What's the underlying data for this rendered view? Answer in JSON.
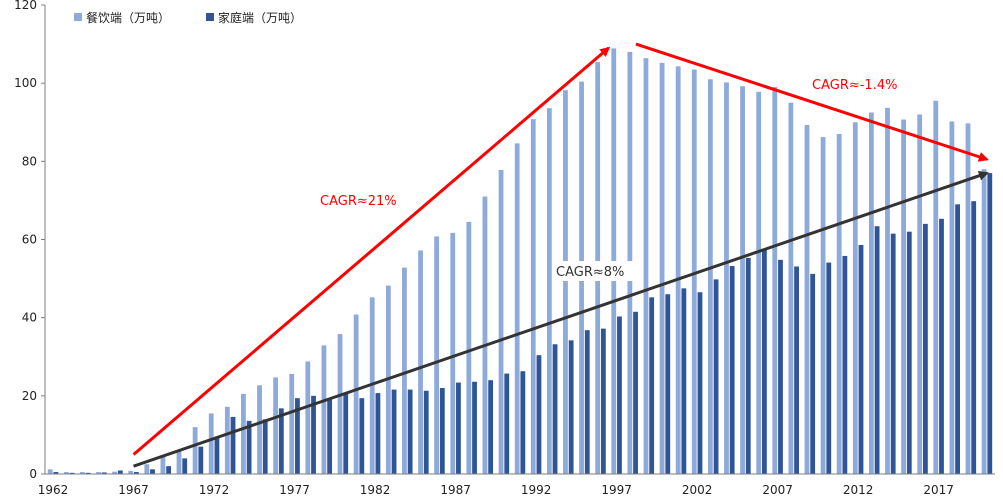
{
  "chart_data": {
    "type": "bar",
    "title": "",
    "xlabel": "",
    "ylabel": "",
    "ylim": [
      0,
      120
    ],
    "yticks": [
      0,
      20,
      40,
      60,
      80,
      100,
      120
    ],
    "grid": false,
    "legend_position": "top-left",
    "x_tick_labels": [
      "1962",
      "1967",
      "1972",
      "1977",
      "1982",
      "1987",
      "1992",
      "1997",
      "2002",
      "2007",
      "2012",
      "2017"
    ],
    "categories": [
      1962,
      1963,
      1964,
      1965,
      1966,
      1967,
      1968,
      1969,
      1970,
      1971,
      1972,
      1973,
      1974,
      1975,
      1976,
      1977,
      1978,
      1979,
      1980,
      1981,
      1982,
      1983,
      1984,
      1985,
      1986,
      1987,
      1988,
      1989,
      1990,
      1991,
      1992,
      1993,
      1994,
      1995,
      1996,
      1997,
      1998,
      1999,
      2000,
      2001,
      2002,
      2003,
      2004,
      2005,
      2006,
      2007,
      2008,
      2009,
      2010,
      2011,
      2012,
      2013,
      2014,
      2015,
      2016,
      2017,
      2018,
      2019,
      2020
    ],
    "series": [
      {
        "name": "餐饮端（万吨）",
        "color": "#8eaadb",
        "values": [
          1.2,
          0.5,
          0.5,
          0.5,
          0.6,
          0.8,
          2.5,
          4.5,
          6.0,
          12.0,
          15.5,
          17.2,
          20.5,
          22.7,
          24.7,
          25.6,
          28.8,
          32.9,
          35.8,
          40.8,
          45.2,
          48.2,
          52.8,
          57.2,
          60.8,
          61.7,
          64.5,
          71.0,
          77.8,
          84.6,
          90.8,
          93.6,
          98.2,
          100.4,
          105.4,
          108.9,
          108.0,
          106.4,
          105.2,
          104.3,
          103.5,
          101.0,
          100.2,
          99.2,
          97.8,
          99.0,
          95.0,
          89.3,
          86.2,
          87.0,
          90.0,
          92.5,
          93.7,
          90.7,
          92.0,
          95.5,
          90.2,
          89.7,
          78.0
        ]
      },
      {
        "name": "家庭端（万吨）",
        "color": "#2f5597",
        "values": [
          0.5,
          0.3,
          0.3,
          0.4,
          0.9,
          0.5,
          1.2,
          2.0,
          4.0,
          7.0,
          9.2,
          14.6,
          13.6,
          14.0,
          16.8,
          19.4,
          20.0,
          19.3,
          20.7,
          19.4,
          20.7,
          21.6,
          21.6,
          21.3,
          22.0,
          23.4,
          23.6,
          24.0,
          25.7,
          26.3,
          30.4,
          33.2,
          34.2,
          36.8,
          37.2,
          40.3,
          41.5,
          45.2,
          46.0,
          47.5,
          46.5,
          49.8,
          53.2,
          55.3,
          57.5,
          54.8,
          53.1,
          51.2,
          54.1,
          55.8,
          58.6,
          63.4,
          61.5,
          62.0,
          64.0,
          65.3,
          69.0,
          69.8,
          77.0
        ]
      }
    ],
    "annotations": [
      {
        "text": "CAGR≈21%",
        "color": "#ff0000",
        "line_from": [
          1967,
          5
        ],
        "line_to": [
          1996.5,
          109
        ]
      },
      {
        "text": "CAGR≈-1.4%",
        "color": "#ff0000",
        "line_from": [
          1998.2,
          110
        ],
        "line_to": [
          2020,
          80.5
        ]
      },
      {
        "text": "CAGR≈8%",
        "color": "#333333",
        "line_from": [
          1967,
          2
        ],
        "line_to": [
          2020,
          77
        ]
      }
    ]
  }
}
